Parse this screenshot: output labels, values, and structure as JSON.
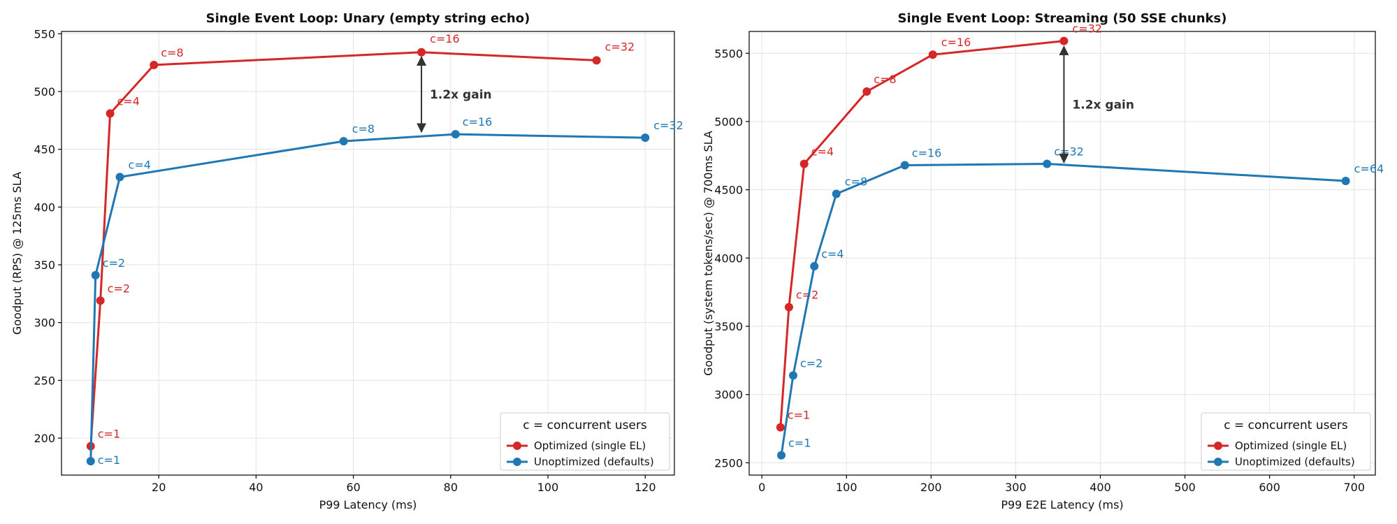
{
  "colors": {
    "optimized": "#d62728",
    "unoptimized": "#1f77b4",
    "arrow": "#333333"
  },
  "chart_data": [
    {
      "type": "line",
      "title": "Single Event Loop: Unary (empty string echo)",
      "xlabel": "P99 Latency (ms)",
      "ylabel": "Goodput (RPS) @ 125ms SLA",
      "xlim": [
        0,
        126
      ],
      "ylim": [
        168,
        552
      ],
      "xticks": [
        20,
        40,
        60,
        80,
        100,
        120
      ],
      "yticks": [
        200,
        250,
        300,
        350,
        400,
        450,
        500,
        550
      ],
      "grid": true,
      "legend_title": "c = concurrent users",
      "legend_position": "lower-right",
      "series": [
        {
          "name": "Optimized (single EL)",
          "color_key": "optimized",
          "points": [
            {
              "x": 6,
              "y": 193,
              "label": "c=1"
            },
            {
              "x": 8,
              "y": 319,
              "label": "c=2"
            },
            {
              "x": 10,
              "y": 481,
              "label": "c=4"
            },
            {
              "x": 19,
              "y": 523,
              "label": "c=8"
            },
            {
              "x": 74,
              "y": 534,
              "label": "c=16"
            },
            {
              "x": 110,
              "y": 527,
              "label": "c=32"
            }
          ]
        },
        {
          "name": "Unoptimized (defaults)",
          "color_key": "unoptimized",
          "points": [
            {
              "x": 6,
              "y": 180,
              "label": "c=1"
            },
            {
              "x": 7,
              "y": 341,
              "label": "c=2"
            },
            {
              "x": 12,
              "y": 426,
              "label": "c=4"
            },
            {
              "x": 58,
              "y": 457,
              "label": "c=8"
            },
            {
              "x": 81,
              "y": 463,
              "label": "c=16"
            },
            {
              "x": 120,
              "y": 460,
              "label": "c=32"
            }
          ]
        }
      ],
      "annotation": {
        "text": "1.2x gain",
        "x": 74,
        "y_from": 465,
        "y_to": 530
      }
    },
    {
      "type": "line",
      "title": "Single Event Loop: Streaming (50 SSE chunks)",
      "xlabel": "P99 E2E Latency (ms)",
      "ylabel": "Goodput (system tokens/sec) @ 700ms SLA",
      "xlim": [
        -15,
        725
      ],
      "ylim": [
        2410,
        5660
      ],
      "xticks": [
        0,
        100,
        200,
        300,
        400,
        500,
        600,
        700
      ],
      "yticks": [
        2500,
        3000,
        3500,
        4000,
        4500,
        5000,
        5500
      ],
      "grid": true,
      "legend_title": "c = concurrent users",
      "legend_position": "lower-right",
      "series": [
        {
          "name": "Optimized (single EL)",
          "color_key": "optimized",
          "points": [
            {
              "x": 22,
              "y": 2760,
              "label": "c=1"
            },
            {
              "x": 32,
              "y": 3640,
              "label": "c=2"
            },
            {
              "x": 50,
              "y": 4690,
              "label": "c=4"
            },
            {
              "x": 124,
              "y": 5220,
              "label": "c=8"
            },
            {
              "x": 202,
              "y": 5490,
              "label": "c=16"
            },
            {
              "x": 357,
              "y": 5590,
              "label": "c=32"
            }
          ]
        },
        {
          "name": "Unoptimized (defaults)",
          "color_key": "unoptimized",
          "points": [
            {
              "x": 23,
              "y": 2555,
              "label": "c=1"
            },
            {
              "x": 37,
              "y": 3140,
              "label": "c=2"
            },
            {
              "x": 62,
              "y": 3940,
              "label": "c=4"
            },
            {
              "x": 88,
              "y": 4470,
              "label": "c=8"
            },
            {
              "x": 169,
              "y": 4680,
              "label": "c=16"
            },
            {
              "x": 337,
              "y": 4690,
              "label": "c=32"
            },
            {
              "x": 690,
              "y": 4565,
              "label": "c=64"
            }
          ]
        }
      ],
      "annotation": {
        "text": "1.2x gain",
        "x": 357,
        "y_from": 4700,
        "y_to": 5550
      }
    }
  ]
}
